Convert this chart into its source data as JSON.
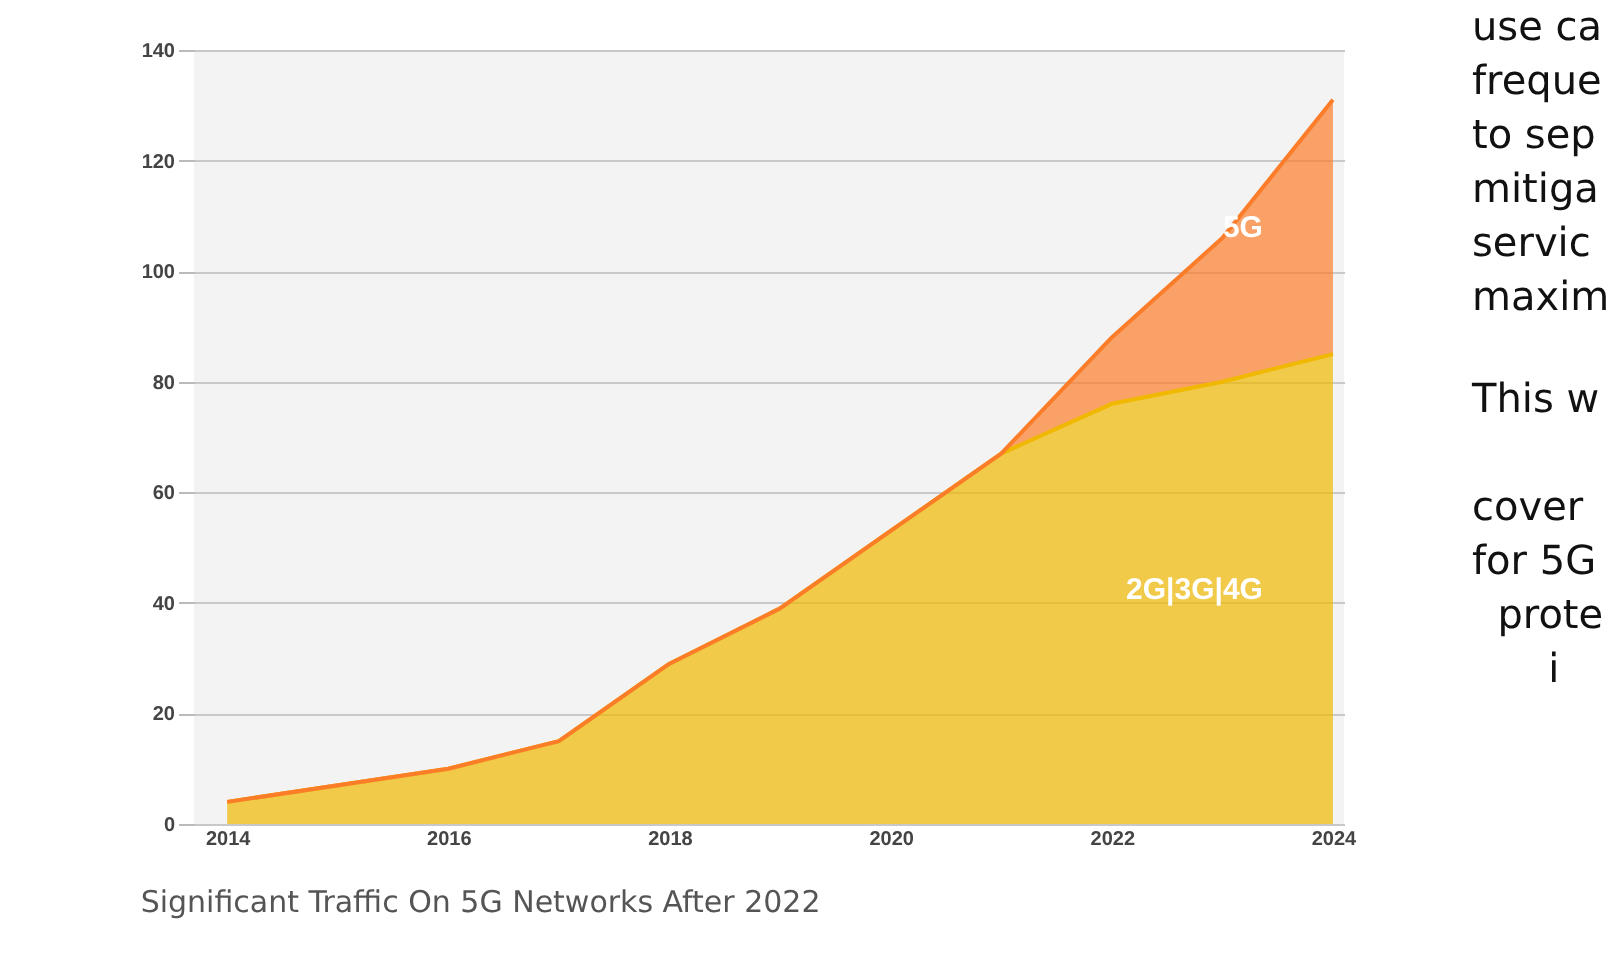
{
  "chart_data": {
    "type": "area",
    "stacked": true,
    "title": "Significant Traffic On 5G Networks After 2022",
    "x": [
      2014,
      2016,
      2017,
      2018,
      2019,
      2020,
      2021,
      2022,
      2023,
      2024
    ],
    "series": [
      {
        "name": "2G|3G|4G",
        "color": "#f0b800",
        "values": [
          4,
          10,
          15,
          29,
          39,
          53,
          67,
          76,
          80,
          85
        ]
      },
      {
        "name": "5G",
        "color": "#fb7d2a",
        "values": [
          0,
          0,
          0,
          0,
          0,
          0,
          0,
          12,
          26,
          46
        ]
      }
    ],
    "xlim": [
      2013.7,
      2024.1
    ],
    "xticks": [
      2014,
      2016,
      2018,
      2020,
      2022,
      2024
    ],
    "ylim": [
      0,
      140
    ],
    "yticks": [
      0,
      20,
      40,
      60,
      80,
      100,
      120,
      140
    ],
    "grid": "y",
    "legend": false,
    "annotations": [
      "use ca\nfreque\nto sep\nmitiga\nservic\nmaxim",
      "This w\n\ncover\nfor 5G\n  prote\n      i"
    ]
  }
}
